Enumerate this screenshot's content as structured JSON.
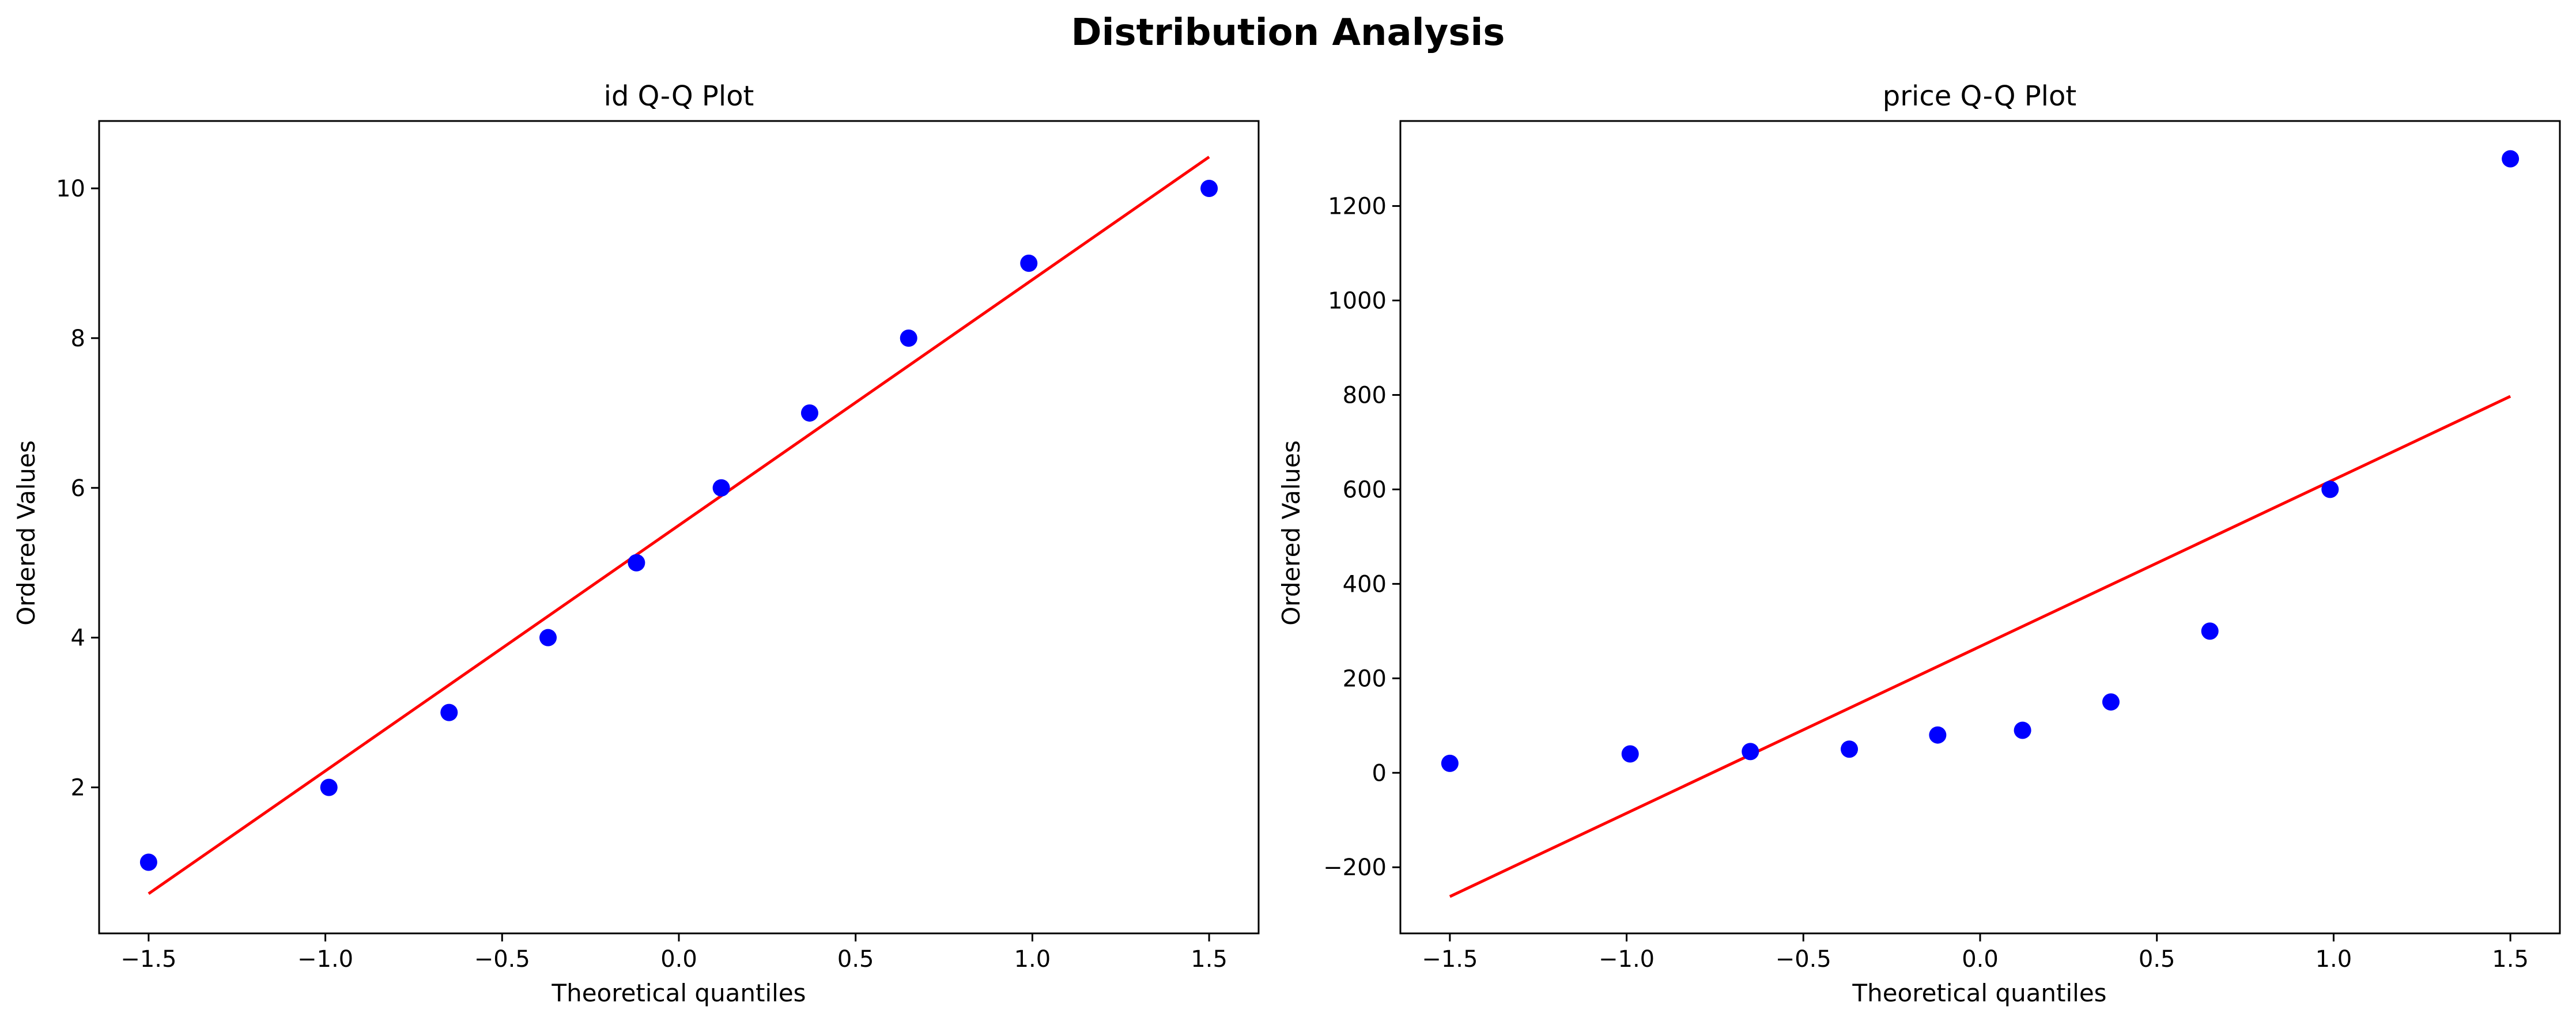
{
  "figure": {
    "title": "Distribution Analysis"
  },
  "chart_data": [
    {
      "type": "scatter",
      "title": "id Q-Q Plot",
      "xlabel": "Theoretical quantiles",
      "ylabel": "Ordered Values",
      "xlim": [
        -1.64,
        1.64
      ],
      "ylim": [
        0.05,
        10.9
      ],
      "xticks": [
        -1.5,
        -1.0,
        -0.5,
        0.0,
        0.5,
        1.0,
        1.5
      ],
      "xtick_labels": [
        "−1.5",
        "−1.0",
        "−0.5",
        "0.0",
        "0.5",
        "1.0",
        "1.5"
      ],
      "yticks": [
        2,
        4,
        6,
        8,
        10
      ],
      "ytick_labels": [
        "2",
        "4",
        "6",
        "8",
        "10"
      ],
      "grid": false,
      "series": [
        {
          "values": [
            {
              "x": -1.5,
              "y": 1
            },
            {
              "x": -0.99,
              "y": 2
            },
            {
              "x": -0.65,
              "y": 3
            },
            {
              "x": -0.37,
              "y": 4
            },
            {
              "x": -0.12,
              "y": 5
            },
            {
              "x": 0.12,
              "y": 6
            },
            {
              "x": 0.37,
              "y": 7
            },
            {
              "x": 0.65,
              "y": 8
            },
            {
              "x": 0.99,
              "y": 9
            },
            {
              "x": 1.5,
              "y": 10
            }
          ],
          "color": "#0000ff"
        }
      ],
      "fit_line": {
        "x": [
          -1.5,
          1.5
        ],
        "y": [
          0.58,
          10.42
        ],
        "color": "#ff0000"
      }
    },
    {
      "type": "scatter",
      "title": "price Q-Q Plot",
      "xlabel": "Theoretical quantiles",
      "ylabel": "Ordered Values",
      "xlim": [
        -1.64,
        1.64
      ],
      "ylim": [
        -340,
        1380
      ],
      "xticks": [
        -1.5,
        -1.0,
        -0.5,
        0.0,
        0.5,
        1.0,
        1.5
      ],
      "xtick_labels": [
        "−1.5",
        "−1.0",
        "−0.5",
        "0.0",
        "0.5",
        "1.0",
        "1.5"
      ],
      "yticks": [
        -200,
        0,
        200,
        400,
        600,
        800,
        1000,
        1200
      ],
      "ytick_labels": [
        "−200",
        "0",
        "200",
        "400",
        "600",
        "800",
        "1000",
        "1200"
      ],
      "grid": false,
      "series": [
        {
          "values": [
            {
              "x": -1.5,
              "y": 20
            },
            {
              "x": -0.99,
              "y": 40
            },
            {
              "x": -0.65,
              "y": 45
            },
            {
              "x": -0.37,
              "y": 50
            },
            {
              "x": -0.12,
              "y": 80
            },
            {
              "x": 0.12,
              "y": 90
            },
            {
              "x": 0.37,
              "y": 150
            },
            {
              "x": 0.65,
              "y": 300
            },
            {
              "x": 0.99,
              "y": 600
            },
            {
              "x": 1.5,
              "y": 1300
            }
          ],
          "color": "#0000ff"
        }
      ],
      "fit_line": {
        "x": [
          -1.5,
          1.5
        ],
        "y": [
          -262,
          797
        ],
        "color": "#ff0000"
      }
    }
  ]
}
